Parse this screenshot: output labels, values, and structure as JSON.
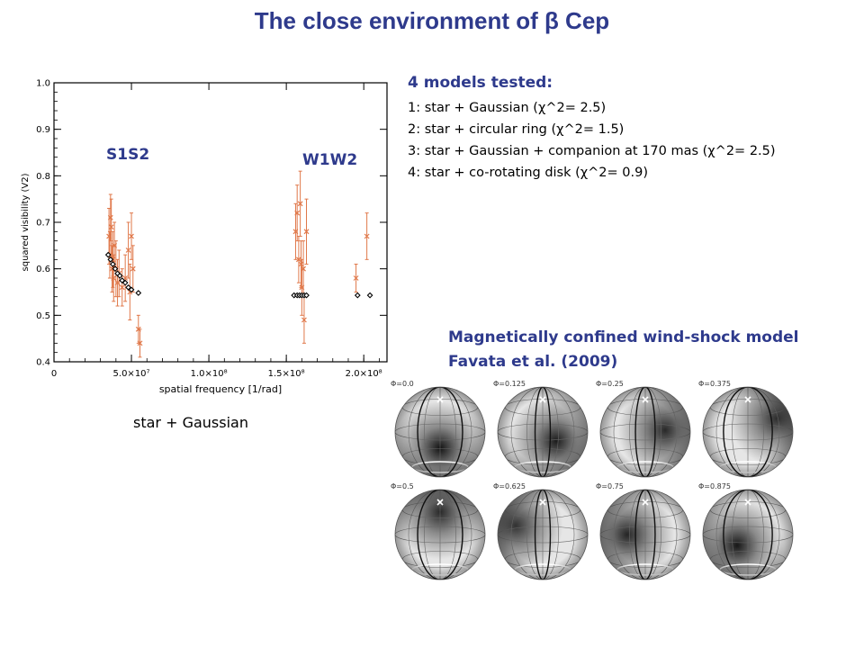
{
  "title": "The close environment of β Cep",
  "plot": {
    "s1s2_label": "S1S2",
    "w1w2_label": "W1W2",
    "caption": "star + Gaussian"
  },
  "chart_data": {
    "type": "scatter",
    "xlabel": "spatial frequency [1/rad]",
    "ylabel": "squared visibility (V2)",
    "xlim": [
      0,
      215000000
    ],
    "ylim": [
      0.4,
      1.0
    ],
    "x_ticks": [
      0,
      50000000,
      100000000,
      150000000,
      200000000
    ],
    "x_tick_labels": [
      "0",
      "5.0×10⁷",
      "1.0×10⁸",
      "1.5×10⁸",
      "2.0×10⁸"
    ],
    "y_ticks": [
      0.4,
      0.5,
      0.6,
      0.7,
      0.8,
      0.9,
      1.0
    ],
    "y_tick_labels": [
      "0.4",
      "0.5",
      "0.6",
      "0.7",
      "0.8",
      "0.9",
      "1.0"
    ],
    "series": [
      {
        "marker": "x",
        "color": "#e0784a",
        "points": [
          {
            "x": 35500000,
            "y": 0.67,
            "err": 0.06
          },
          {
            "x": 36000000,
            "y": 0.63,
            "err": 0.05
          },
          {
            "x": 36500000,
            "y": 0.71,
            "err": 0.05
          },
          {
            "x": 37000000,
            "y": 0.69,
            "err": 0.06
          },
          {
            "x": 37500000,
            "y": 0.6,
            "err": 0.05
          },
          {
            "x": 38000000,
            "y": 0.62,
            "err": 0.06
          },
          {
            "x": 38500000,
            "y": 0.58,
            "err": 0.05
          },
          {
            "x": 39000000,
            "y": 0.65,
            "err": 0.05
          },
          {
            "x": 40000000,
            "y": 0.6,
            "err": 0.06
          },
          {
            "x": 41000000,
            "y": 0.57,
            "err": 0.05
          },
          {
            "x": 42000000,
            "y": 0.59,
            "err": 0.05
          },
          {
            "x": 44000000,
            "y": 0.56,
            "err": 0.04
          },
          {
            "x": 46000000,
            "y": 0.58,
            "err": 0.05
          },
          {
            "x": 48000000,
            "y": 0.64,
            "err": 0.06
          },
          {
            "x": 49000000,
            "y": 0.55,
            "err": 0.06
          },
          {
            "x": 50000000,
            "y": 0.67,
            "err": 0.05
          },
          {
            "x": 51000000,
            "y": 0.6,
            "err": 0.05
          },
          {
            "x": 54500000,
            "y": 0.47,
            "err": 0.03
          },
          {
            "x": 55500000,
            "y": 0.44,
            "err": 0.03
          },
          {
            "x": 156000000,
            "y": 0.68,
            "err": 0.06
          },
          {
            "x": 157000000,
            "y": 0.72,
            "err": 0.06
          },
          {
            "x": 158000000,
            "y": 0.62,
            "err": 0.05
          },
          {
            "x": 159000000,
            "y": 0.74,
            "err": 0.07
          },
          {
            "x": 159500000,
            "y": 0.61,
            "err": 0.05
          },
          {
            "x": 160000000,
            "y": 0.56,
            "err": 0.06
          },
          {
            "x": 161000000,
            "y": 0.6,
            "err": 0.06
          },
          {
            "x": 161500000,
            "y": 0.49,
            "err": 0.05
          },
          {
            "x": 163000000,
            "y": 0.68,
            "err": 0.07
          },
          {
            "x": 195000000,
            "y": 0.58,
            "err": 0.03
          },
          {
            "x": 202000000,
            "y": 0.67,
            "err": 0.05
          }
        ]
      },
      {
        "marker": "diamond",
        "color": "#000000",
        "points": [
          {
            "x": 35000000,
            "y": 0.63
          },
          {
            "x": 36500000,
            "y": 0.62
          },
          {
            "x": 38000000,
            "y": 0.61
          },
          {
            "x": 39500000,
            "y": 0.6
          },
          {
            "x": 41000000,
            "y": 0.59
          },
          {
            "x": 42500000,
            "y": 0.585
          },
          {
            "x": 44000000,
            "y": 0.575
          },
          {
            "x": 46000000,
            "y": 0.57
          },
          {
            "x": 48000000,
            "y": 0.56
          },
          {
            "x": 50000000,
            "y": 0.555
          },
          {
            "x": 54500000,
            "y": 0.548
          },
          {
            "x": 155000000,
            "y": 0.543
          },
          {
            "x": 157000000,
            "y": 0.543
          },
          {
            "x": 158500000,
            "y": 0.543
          },
          {
            "x": 160000000,
            "y": 0.543
          },
          {
            "x": 161500000,
            "y": 0.543
          },
          {
            "x": 163000000,
            "y": 0.543
          },
          {
            "x": 196000000,
            "y": 0.543
          },
          {
            "x": 204000000,
            "y": 0.543
          }
        ]
      }
    ]
  },
  "models": {
    "heading": "4 models tested:",
    "items": [
      "1: star + Gaussian (χ^2= 2.5)",
      "2: star + circular ring (χ^2= 1.5)",
      "3: star + Gaussian + companion at 170 mas (χ^2= 2.5)",
      "4: star + co-rotating disk (χ^2= 0.9)"
    ]
  },
  "mcws": {
    "line1": "Magnetically confined wind-shock model",
    "line2": "Favata et al. (2009)"
  },
  "spheres": [
    {
      "phase": "Φ=0.0",
      "spot": [
        0.5,
        0.68
      ],
      "dark": 0.8
    },
    {
      "phase": "Φ=0.125",
      "spot": [
        0.65,
        0.6
      ],
      "dark": 0.7
    },
    {
      "phase": "Φ=0.25",
      "spot": [
        0.72,
        0.48
      ],
      "dark": 0.55
    },
    {
      "phase": "Φ=0.375",
      "spot": [
        0.82,
        0.35
      ],
      "dark": 0.5
    },
    {
      "phase": "Φ=0.5",
      "spot": [
        0.5,
        0.25
      ],
      "dark": 0.55
    },
    {
      "phase": "Φ=0.625",
      "spot": [
        0.2,
        0.4
      ],
      "dark": 0.45
    },
    {
      "phase": "Φ=0.75",
      "spot": [
        0.3,
        0.5
      ],
      "dark": 0.6
    },
    {
      "phase": "Φ=0.875",
      "spot": [
        0.38,
        0.62
      ],
      "dark": 0.75
    }
  ]
}
